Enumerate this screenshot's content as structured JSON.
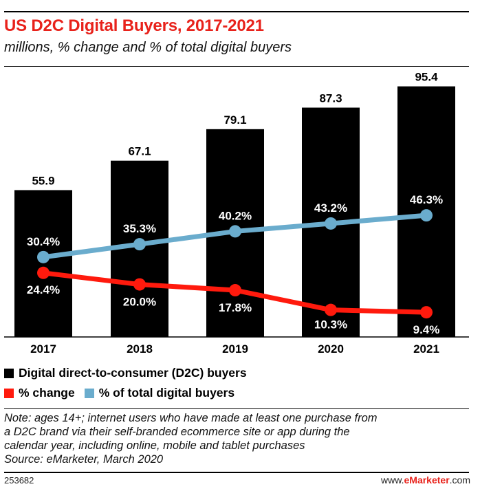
{
  "header": {
    "title": "US D2C Digital Buyers, 2017-2021",
    "subtitle": "millions, % change and % of total digital buyers"
  },
  "chart_data": {
    "type": "bar",
    "categories": [
      "2017",
      "2018",
      "2019",
      "2020",
      "2021"
    ],
    "ylim": [
      0,
      100
    ],
    "bars": {
      "name": "Digital direct-to-consumer (D2C) buyers",
      "values": [
        55.9,
        67.1,
        79.1,
        87.3,
        95.4
      ],
      "labels": [
        "55.9",
        "67.1",
        "79.1",
        "87.3",
        "95.4"
      ],
      "color": "#000000"
    },
    "lines": [
      {
        "name": "% change",
        "values": [
          24.4,
          20.0,
          17.8,
          10.3,
          9.4
        ],
        "labels": [
          "24.4%",
          "20.0%",
          "17.8%",
          "10.3%",
          "9.4%"
        ],
        "color": "#ff1a0d"
      },
      {
        "name": "% of total digital buyers",
        "values": [
          30.4,
          35.3,
          40.2,
          43.2,
          46.3
        ],
        "labels": [
          "30.4%",
          "35.3%",
          "40.2%",
          "43.2%",
          "46.3%"
        ],
        "color": "#6aaccd"
      }
    ],
    "line_ylim": [
      0,
      100
    ],
    "grid": false,
    "legend_position": "bottom"
  },
  "legend": {
    "bars_label": "Digital direct-to-consumer (D2C) buyers",
    "change_label": "% change",
    "share_label": "% of total digital buyers"
  },
  "note": {
    "lines": [
      "Note: ages 14+; internet users who have made at least one purchase from",
      "a D2C brand via their self-branded ecommerce site or app during the",
      "calendar year, including online, mobile and tablet purchases",
      "Source: eMarketer, March 2020"
    ]
  },
  "footer": {
    "chart_id": "253682",
    "brand_prefix": "www.",
    "brand_name": "eMarketer",
    "brand_suffix": ".com"
  }
}
